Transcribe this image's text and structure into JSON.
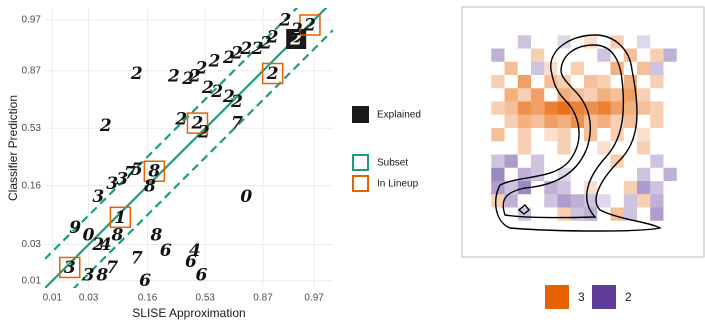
{
  "chart_data": [
    {
      "type": "scatter",
      "xlabel": "SLISE Approximation",
      "ylabel": "Classifier Prediction",
      "xscale": "logit",
      "yscale": "logit",
      "xlim": [
        0.008,
        0.983
      ],
      "ylim": [
        0.008,
        0.979
      ],
      "xticks": [
        0.01,
        0.03,
        0.16,
        0.53,
        0.87,
        0.97
      ],
      "yticks": [
        0.01,
        0.03,
        0.16,
        0.53,
        0.87,
        0.97
      ],
      "grid": true,
      "diagonal": {
        "name": "Subset",
        "color": "#1b9e77",
        "band": 0.9
      },
      "series": [
        {
          "name": "Explained",
          "color": "#1a1a1a",
          "x": [
            0.949
          ],
          "y": [
            0.947
          ],
          "labels": [
            "2"
          ]
        },
        {
          "name": "In Lineup",
          "color": "#e66100",
          "x": [
            0.966,
            0.9,
            0.47,
            0.19,
            0.076,
            0.017
          ],
          "y": [
            0.965,
            0.86,
            0.57,
            0.23,
            0.067,
            0.015
          ],
          "labels": [
            "2",
            "2",
            "2",
            "8",
            "1",
            "3"
          ]
        },
        {
          "color": "#111111",
          "x": [
            0.93,
            0.95,
            0.9,
            0.88,
            0.85,
            0.8,
            0.75,
            0.7,
            0.6,
            0.5,
            0.45,
            0.4,
            0.55,
            0.62,
            0.7,
            0.75,
            0.12,
            0.3,
            0.05,
            0.35,
            0.75,
            0.52,
            0.06,
            0.08,
            0.1,
            0.12,
            0.17,
            0.04,
            0.8,
            0.02,
            0.03,
            0.04,
            0.05,
            0.07,
            0.2,
            0.25,
            0.45,
            0.42,
            0.12,
            0.03,
            0.045,
            0.06,
            0.15,
            0.5
          ],
          "y": [
            0.97,
            0.96,
            0.95,
            0.94,
            0.93,
            0.93,
            0.92,
            0.91,
            0.9,
            0.88,
            0.85,
            0.84,
            0.8,
            0.78,
            0.75,
            0.72,
            0.86,
            0.85,
            0.55,
            0.6,
            0.57,
            0.5,
            0.17,
            0.19,
            0.22,
            0.24,
            0.16,
            0.12,
            0.12,
            0.05,
            0.04,
            0.03,
            0.03,
            0.04,
            0.04,
            0.025,
            0.025,
            0.018,
            0.02,
            0.012,
            0.012,
            0.015,
            0.01,
            0.012
          ],
          "labels": [
            "2",
            "2",
            "2",
            "2",
            "2",
            "2",
            "2",
            "2",
            "2",
            "2",
            "2",
            "2",
            "2",
            "2",
            "2",
            "2",
            "2",
            "2",
            "2",
            "2",
            "7",
            "2",
            "3",
            "3",
            "7",
            "5",
            "8",
            "3",
            "0",
            "9",
            "0",
            "2",
            "4",
            "8",
            "8",
            "6",
            "4",
            "6",
            "7",
            "3",
            "8",
            "7",
            "6",
            "6"
          ]
        }
      ]
    },
    {
      "type": "heatmap",
      "legend": [
        {
          "name": "3",
          "color": "#e66100"
        },
        {
          "name": "2",
          "color": "#5e3c99"
        }
      ],
      "values": [
        [
          0,
          0,
          0,
          0,
          0,
          0,
          0,
          0,
          0,
          0,
          0,
          0,
          0,
          0,
          0,
          0
        ],
        [
          0,
          0,
          0,
          -0.3,
          0,
          0,
          -0.2,
          0,
          0.2,
          0,
          0.3,
          0,
          -0.2,
          0,
          0,
          0
        ],
        [
          0,
          -0.4,
          0,
          0,
          0.3,
          0,
          0,
          0,
          0,
          -0.3,
          0,
          0.4,
          0,
          0.3,
          -0.4,
          0
        ],
        [
          0,
          0,
          0.4,
          0,
          -0.3,
          0.2,
          0,
          0.3,
          0,
          0,
          0.5,
          0,
          0.4,
          -0.3,
          0,
          0
        ],
        [
          0,
          0.3,
          0,
          0.6,
          0,
          0.4,
          0.3,
          0,
          0.4,
          0.3,
          0,
          0.5,
          0,
          0.3,
          0,
          0
        ],
        [
          0,
          0,
          0.5,
          0.3,
          0.6,
          0,
          0.5,
          0.4,
          0.3,
          0.5,
          0.4,
          0.6,
          0.3,
          0,
          0,
          0
        ],
        [
          0,
          0.3,
          0.4,
          0.7,
          0.6,
          0.8,
          0.9,
          0.8,
          0.7,
          0.8,
          0.6,
          0.5,
          0.4,
          0.3,
          0,
          0
        ],
        [
          0,
          0,
          0.3,
          0.5,
          0.4,
          0.6,
          0.5,
          0.7,
          0.4,
          0.5,
          0.3,
          0.4,
          0,
          0.3,
          0,
          0
        ],
        [
          0,
          0.4,
          0,
          0.3,
          0,
          0.2,
          0.3,
          0,
          0.4,
          0,
          0.3,
          0,
          0.2,
          0,
          0,
          0
        ],
        [
          0,
          0,
          0,
          0.3,
          0,
          0,
          0.3,
          0,
          0,
          0.2,
          0,
          0,
          0.3,
          0,
          0,
          0
        ],
        [
          0,
          -0.3,
          -0.5,
          0,
          -0.3,
          0,
          0,
          0,
          0,
          0,
          0.3,
          0,
          0,
          -0.3,
          0,
          0
        ],
        [
          0,
          -0.6,
          0,
          -0.4,
          -0.3,
          0,
          -0.2,
          0,
          0,
          0,
          0,
          0,
          -0.3,
          0,
          -0.4,
          0
        ],
        [
          0,
          -0.5,
          -0.3,
          -0.6,
          0,
          -0.4,
          -0.3,
          0,
          0.2,
          0,
          0,
          0.3,
          -0.5,
          -0.3,
          0,
          0
        ],
        [
          0,
          0.3,
          -0.4,
          0,
          0,
          -0.3,
          -0.5,
          -0.4,
          -0.3,
          -0.2,
          0,
          -0.3,
          0.3,
          -0.4,
          0,
          0
        ],
        [
          0,
          0,
          0,
          -0.3,
          0,
          0,
          0.3,
          -0.3,
          -0.4,
          0,
          0.4,
          -0.3,
          0,
          -0.5,
          0,
          0
        ],
        [
          0,
          0,
          0,
          0,
          0,
          0,
          0,
          0,
          0,
          0,
          0,
          0,
          0,
          0,
          0,
          0
        ]
      ]
    }
  ]
}
